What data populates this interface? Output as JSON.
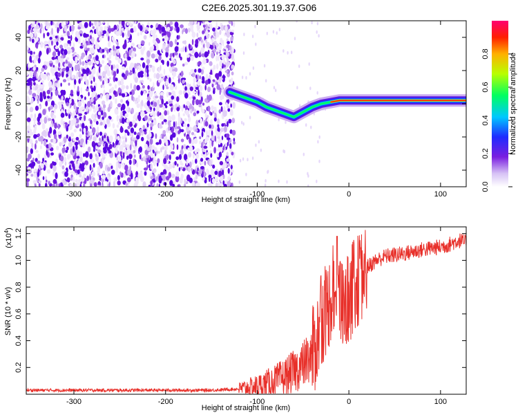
{
  "title": "C2E6.2025.301.19.37.G06",
  "chart_data": [
    {
      "type": "heatmap",
      "xlabel": "Height of straight line (km)",
      "ylabel": "Frequency (Hz)",
      "xlim": [
        -352,
        128
      ],
      "ylim": [
        -50,
        50
      ],
      "xticks": [
        -300,
        -200,
        -100,
        0,
        100
      ],
      "yticks": [
        -40,
        -20,
        0,
        20,
        40
      ],
      "ridge": {
        "x": [
          -130,
          -120,
          -110,
          -100,
          -90,
          -80,
          -70,
          -60,
          -50,
          -40,
          -30,
          -20,
          -10,
          0,
          20,
          40,
          60,
          80,
          100,
          128
        ],
        "y": [
          7,
          5,
          3,
          1,
          -2,
          -4,
          -6,
          -8,
          -5,
          -2,
          0,
          1,
          2,
          2,
          2,
          2,
          2,
          2,
          2,
          2
        ]
      },
      "noise_region_x": [
        -352,
        -125
      ],
      "colorbar": {
        "label": "Normalized spectral amplitude",
        "range": [
          0,
          1
        ],
        "ticks": [
          "0.0",
          "0.2",
          "0.4",
          "0.6",
          "0.8"
        ]
      }
    },
    {
      "type": "line",
      "xlabel": "Height of straight line (km)",
      "ylabel": "SNR (10 * v/v)",
      "yscale_label": "(x10",
      "yscale_exp": "4",
      "yscale_close": ")",
      "xlim": [
        -352,
        128
      ],
      "ylim": [
        0,
        1.25
      ],
      "xticks": [
        -300,
        -200,
        -100,
        0,
        100
      ],
      "yticks": [
        "0.2",
        "0.4",
        "0.6",
        "0.8",
        "1.0",
        "1.2"
      ],
      "color": "#e8302a",
      "series": [
        {
          "name": "SNR",
          "x": [
            -352,
            -300,
            -250,
            -200,
            -150,
            -120,
            -100,
            -90,
            -80,
            -70,
            -60,
            -50,
            -40,
            -35,
            -30,
            -25,
            -20,
            -15,
            -12,
            -10,
            -5,
            0,
            5,
            10,
            20,
            30,
            40,
            60,
            80,
            100,
            110,
            120,
            128
          ],
          "y": [
            0.03,
            0.03,
            0.03,
            0.03,
            0.03,
            0.04,
            0.06,
            0.08,
            0.1,
            0.13,
            0.17,
            0.22,
            0.3,
            0.4,
            0.55,
            0.62,
            0.72,
            0.8,
            0.85,
            0.65,
            0.6,
            0.72,
            0.8,
            0.85,
            0.95,
            1.0,
            1.03,
            1.05,
            1.08,
            1.1,
            1.12,
            1.15,
            1.13
          ]
        }
      ]
    }
  ]
}
